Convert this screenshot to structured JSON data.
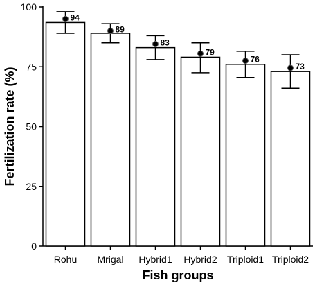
{
  "chart_data": {
    "type": "bar",
    "xlabel": "Fish groups",
    "ylabel": "Fertilization rate (%)",
    "ylim": [
      0,
      100
    ],
    "yticks": [
      0,
      25,
      50,
      75,
      100
    ],
    "categories": [
      "Rohu",
      "Mrigal",
      "Hybrid1",
      "Hybrid2",
      "Triploid1",
      "Triploid2"
    ],
    "values": [
      93.5,
      89,
      83,
      79,
      76,
      73
    ],
    "error_low": [
      89,
      85,
      78,
      72.5,
      70.5,
      66
    ],
    "error_high": [
      98,
      93,
      88,
      85,
      81.5,
      80
    ],
    "marker_values": [
      95,
      90,
      84.5,
      80.5,
      77.5,
      74.5
    ],
    "data_labels": [
      "94",
      "89",
      "83",
      "79",
      "76",
      "73"
    ],
    "grid": false,
    "colors": {
      "bar_fill": "#ffffff",
      "bar_stroke": "#000000",
      "marker": "#000000"
    }
  }
}
